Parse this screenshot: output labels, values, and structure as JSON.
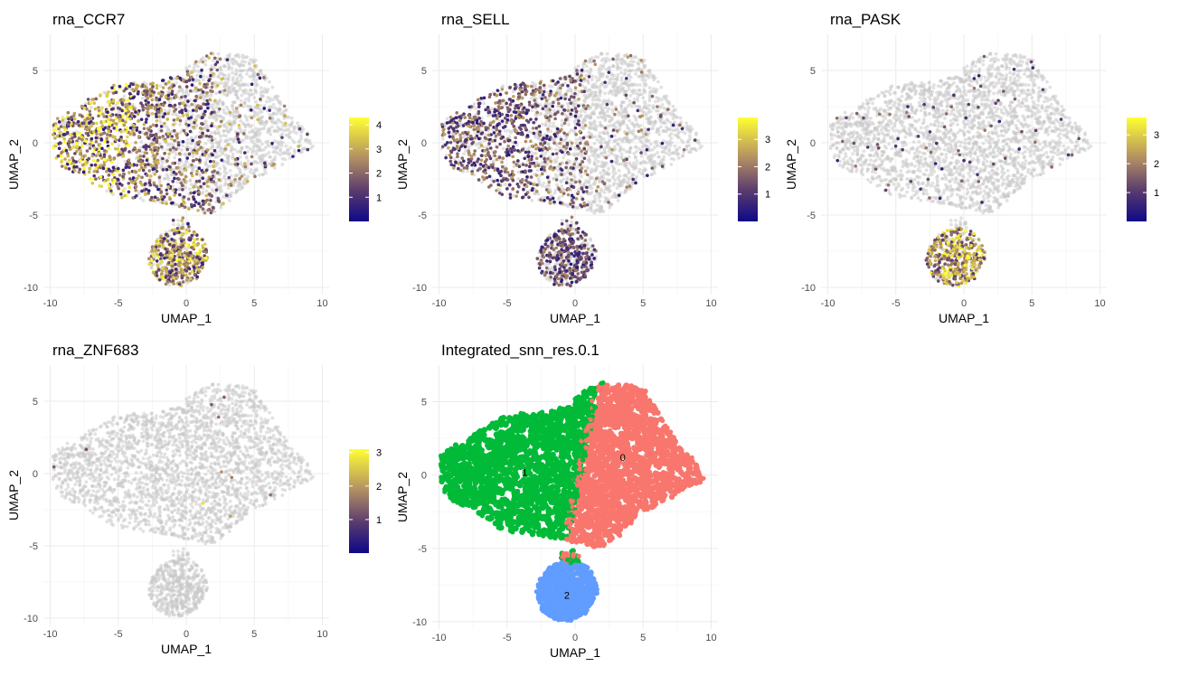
{
  "chart_data": [
    {
      "type": "scatter",
      "title": "rna_CCR7",
      "xlabel": "UMAP_1",
      "ylabel": "UMAP_2",
      "xlim": [
        -10.5,
        10.5
      ],
      "ylim": [
        -10.5,
        7.5
      ],
      "x_ticks": [
        -10,
        -5,
        0,
        5,
        10
      ],
      "y_ticks": [
        -10,
        -5,
        0,
        5
      ],
      "grid": true,
      "color_scale": {
        "low": "#0d0887",
        "mid": "#a98a6a",
        "high": "#ffff33",
        "na": "#c8c8c8"
      },
      "legend": {
        "position": "right",
        "min": 0,
        "max": 4.3,
        "ticks": [
          1,
          2,
          3,
          4
        ]
      },
      "expression_pattern": "high in left lobe (UMAP_1 < 0) and in small cluster, low/absent on right",
      "max_value": 4.3
    },
    {
      "type": "scatter",
      "title": "rna_SELL",
      "xlabel": "UMAP_1",
      "ylabel": "UMAP_2",
      "xlim": [
        -10.5,
        10.5
      ],
      "ylim": [
        -10.5,
        7.5
      ],
      "x_ticks": [
        -10,
        -5,
        0,
        5,
        10
      ],
      "y_ticks": [
        -10,
        -5,
        0,
        5
      ],
      "grid": true,
      "color_scale": {
        "low": "#0d0887",
        "mid": "#a98a6a",
        "high": "#ffff33",
        "na": "#c8c8c8"
      },
      "legend": {
        "position": "right",
        "min": 0,
        "max": 3.8,
        "ticks": [
          1,
          2,
          3
        ]
      },
      "expression_pattern": "moderate in left lobe and small cluster",
      "max_value": 3.8
    },
    {
      "type": "scatter",
      "title": "rna_PASK",
      "xlabel": "UMAP_1",
      "ylabel": "UMAP_2",
      "xlim": [
        -10.5,
        10.5
      ],
      "ylim": [
        -10.5,
        7.5
      ],
      "x_ticks": [
        -10,
        -5,
        0,
        5,
        10
      ],
      "y_ticks": [
        -10,
        -5,
        0,
        5
      ],
      "grid": true,
      "color_scale": {
        "low": "#0d0887",
        "mid": "#a98a6a",
        "high": "#ffff33",
        "na": "#c8c8c8"
      },
      "legend": {
        "position": "right",
        "min": 0,
        "max": 3.6,
        "ticks": [
          1,
          2,
          3
        ]
      },
      "expression_pattern": "high in small cluster, sparse elsewhere",
      "max_value": 3.6
    },
    {
      "type": "scatter",
      "title": "rna_ZNF683",
      "xlabel": "UMAP_1",
      "ylabel": "UMAP_2",
      "xlim": [
        -10.5,
        10.5
      ],
      "ylim": [
        -10.5,
        7.5
      ],
      "x_ticks": [
        -10,
        -5,
        0,
        5,
        10
      ],
      "y_ticks": [
        -10,
        -5,
        0,
        5
      ],
      "grid": true,
      "color_scale": {
        "low": "#0d0887",
        "mid": "#a98a6a",
        "high": "#ffff33",
        "na": "#c8c8c8"
      },
      "legend": {
        "position": "right",
        "min": 0,
        "max": 3.1,
        "ticks": [
          1,
          2,
          3
        ]
      },
      "expression_pattern": "almost absent, a few scattered cells",
      "max_value": 3.1
    },
    {
      "type": "scatter",
      "title": "Integrated_snn_res.0.1",
      "xlabel": "UMAP_1",
      "ylabel": "UMAP_2",
      "xlim": [
        -10.5,
        10.5
      ],
      "ylim": [
        -10.5,
        7.5
      ],
      "x_ticks": [
        -10,
        -5,
        0,
        5,
        10
      ],
      "y_ticks": [
        -10,
        -5,
        0,
        5
      ],
      "grid": true,
      "clusters": [
        {
          "label": "0",
          "color": "#f8766d",
          "label_x": 3.5,
          "label_y": 1.2
        },
        {
          "label": "1",
          "color": "#00ba38",
          "label_x": -3.7,
          "label_y": 0.2
        },
        {
          "label": "2",
          "color": "#619cff",
          "label_x": -0.6,
          "label_y": -8.2
        }
      ]
    }
  ]
}
